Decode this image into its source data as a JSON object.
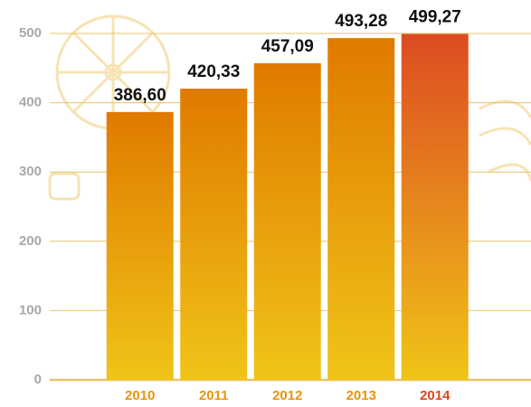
{
  "chart_data": {
    "type": "bar",
    "categories": [
      "2010",
      "2011",
      "2012",
      "2013",
      "2014"
    ],
    "values": [
      386.6,
      420.33,
      457.09,
      493.28,
      499.27
    ],
    "value_labels": [
      "386,60",
      "420,33",
      "457,09",
      "493,28",
      "499,27"
    ],
    "colors": [
      "#e07a00",
      "#e07a00",
      "#e07a00",
      "#e07a00",
      "#dd4b22"
    ],
    "label_colors": [
      "#e8940a",
      "#e8940a",
      "#e8940a",
      "#e8940a",
      "#d9481f"
    ],
    "ylim": [
      0,
      500
    ],
    "yticks": [
      0,
      100,
      200,
      300,
      400,
      500
    ],
    "grid": true
  }
}
